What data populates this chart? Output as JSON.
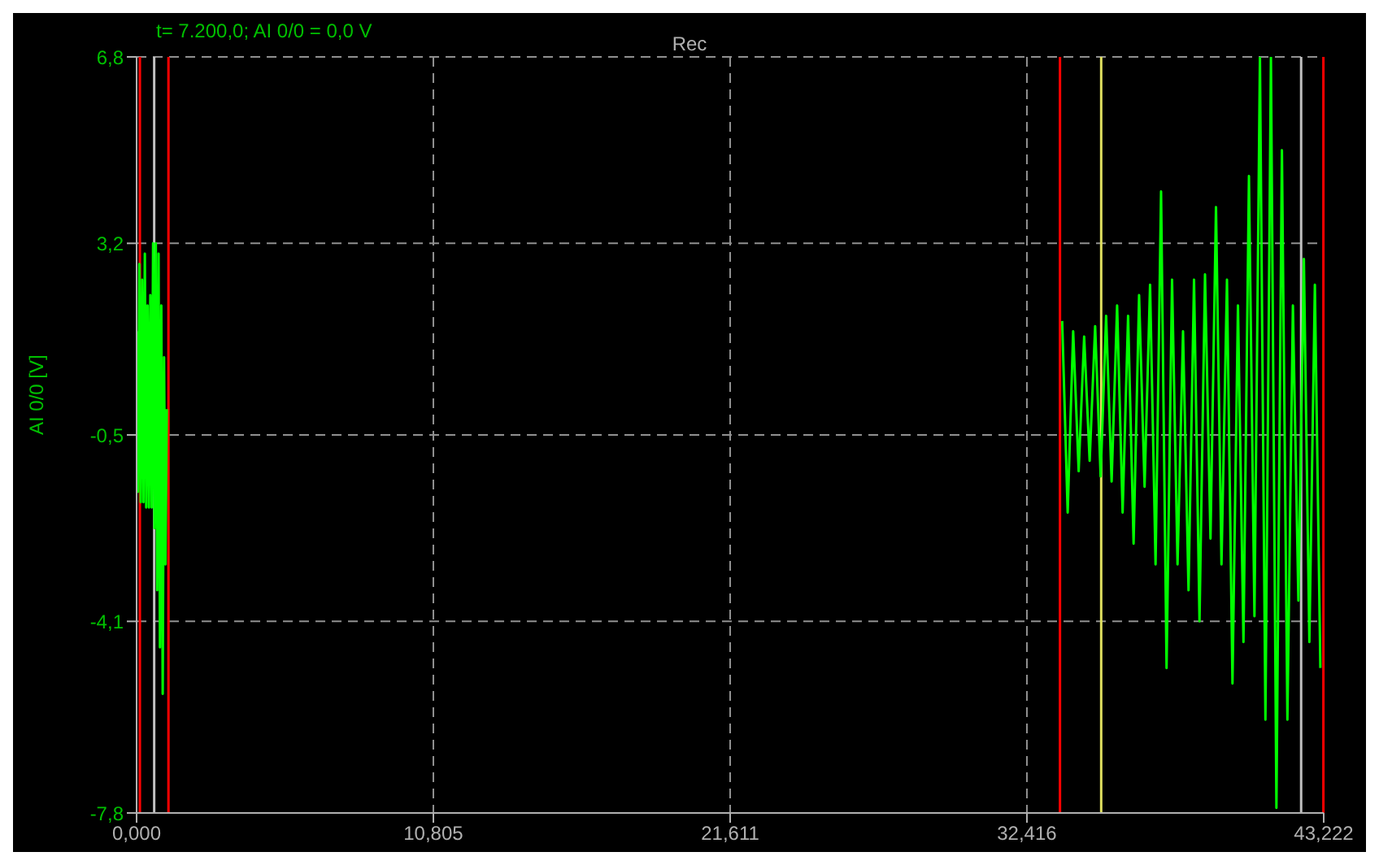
{
  "chart_data": {
    "type": "line",
    "title": "Rec",
    "ylabel": "AI 0/0 [V]",
    "annotations": [
      "t= 7.200,0; AI 0/0 = 0,0 V"
    ],
    "xlim": [
      0,
      43.222
    ],
    "xticks": [
      {
        "value": 0,
        "label": "0,000"
      },
      {
        "value": 10.805,
        "label": "10,805"
      },
      {
        "value": 21.611,
        "label": "21,611"
      },
      {
        "value": 32.416,
        "label": "32,416"
      },
      {
        "value": 43.222,
        "label": "43,222"
      }
    ],
    "ylim": [
      -7.8,
      6.8
    ],
    "yticks": [
      {
        "value": -7.8,
        "label": "-7,8"
      },
      {
        "value": -4.1,
        "label": "-4,1"
      },
      {
        "value": -0.5,
        "label": "-0,5"
      },
      {
        "value": 3.2,
        "label": "3,2"
      },
      {
        "value": 6.8,
        "label": "6,8"
      }
    ],
    "grid": true,
    "ref_lines": [
      {
        "axis": "x",
        "value": 0.12,
        "color": "#ff0000"
      },
      {
        "axis": "x",
        "value": 0.64,
        "color": "#c0c0c0"
      },
      {
        "axis": "x",
        "value": 1.16,
        "color": "#ff0000"
      },
      {
        "axis": "x",
        "value": 33.62,
        "color": "#ff0000"
      },
      {
        "axis": "x",
        "value": 35.12,
        "color": "#e0e060"
      },
      {
        "axis": "x",
        "value": 42.4,
        "color": "#c0c0c0"
      },
      {
        "axis": "x",
        "value": 43.21,
        "color": "#ff0000"
      }
    ],
    "x": [
      0,
      0.05,
      0.1,
      0.15,
      0.2,
      0.25,
      0.3,
      0.35,
      0.4,
      0.45,
      0.5,
      0.55,
      0.6,
      0.65,
      0.7,
      0.75,
      0.8,
      0.85,
      0.9,
      0.95,
      1.0,
      1.05,
      1.1,
      17,
      33.7,
      33.9,
      34.1,
      34.3,
      34.5,
      34.7,
      34.9,
      35.1,
      35.3,
      35.5,
      35.7,
      35.9,
      36.1,
      36.3,
      36.5,
      36.7,
      36.9,
      37.1,
      37.3,
      37.5,
      37.7,
      37.9,
      38.1,
      38.3,
      38.5,
      38.7,
      38.9,
      39.1,
      39.3,
      39.5,
      39.7,
      39.9,
      40.1,
      40.3,
      40.5,
      40.7,
      40.9,
      41.1,
      41.3,
      41.5,
      41.7,
      41.9,
      42.1,
      42.3,
      42.5,
      42.7,
      42.9,
      43.1
    ],
    "series": [
      {
        "color": "#00ff00",
        "values": [
          1.5,
          -1.6,
          2.8,
          -1.8,
          2.5,
          -1.8,
          3.0,
          -1.9,
          2.0,
          -1.9,
          2.2,
          -1.9,
          3.2,
          -2.3,
          3.2,
          -3.5,
          3.0,
          -4.6,
          2.0,
          -5.5,
          1.0,
          -3.0,
          0,
          null,
          1.7,
          -2.0,
          1.5,
          -1.2,
          1.4,
          -1.0,
          1.6,
          -1.3,
          1.8,
          -1.4,
          2.0,
          -2.0,
          1.8,
          -2.6,
          2.2,
          -1.5,
          2.4,
          -3.0,
          4.2,
          -5.0,
          2.5,
          -3.0,
          1.5,
          -3.5,
          2.5,
          -4.1,
          2.6,
          -2.5,
          3.9,
          -3.0,
          2.5,
          -5.3,
          2.0,
          -4.5,
          4.5,
          -4.0,
          6.8,
          -6.0,
          6.8,
          -7.7,
          5.0,
          -6.0,
          2.0,
          -3.7,
          2.9,
          -4.5,
          2.4,
          -5.0
        ]
      }
    ]
  }
}
